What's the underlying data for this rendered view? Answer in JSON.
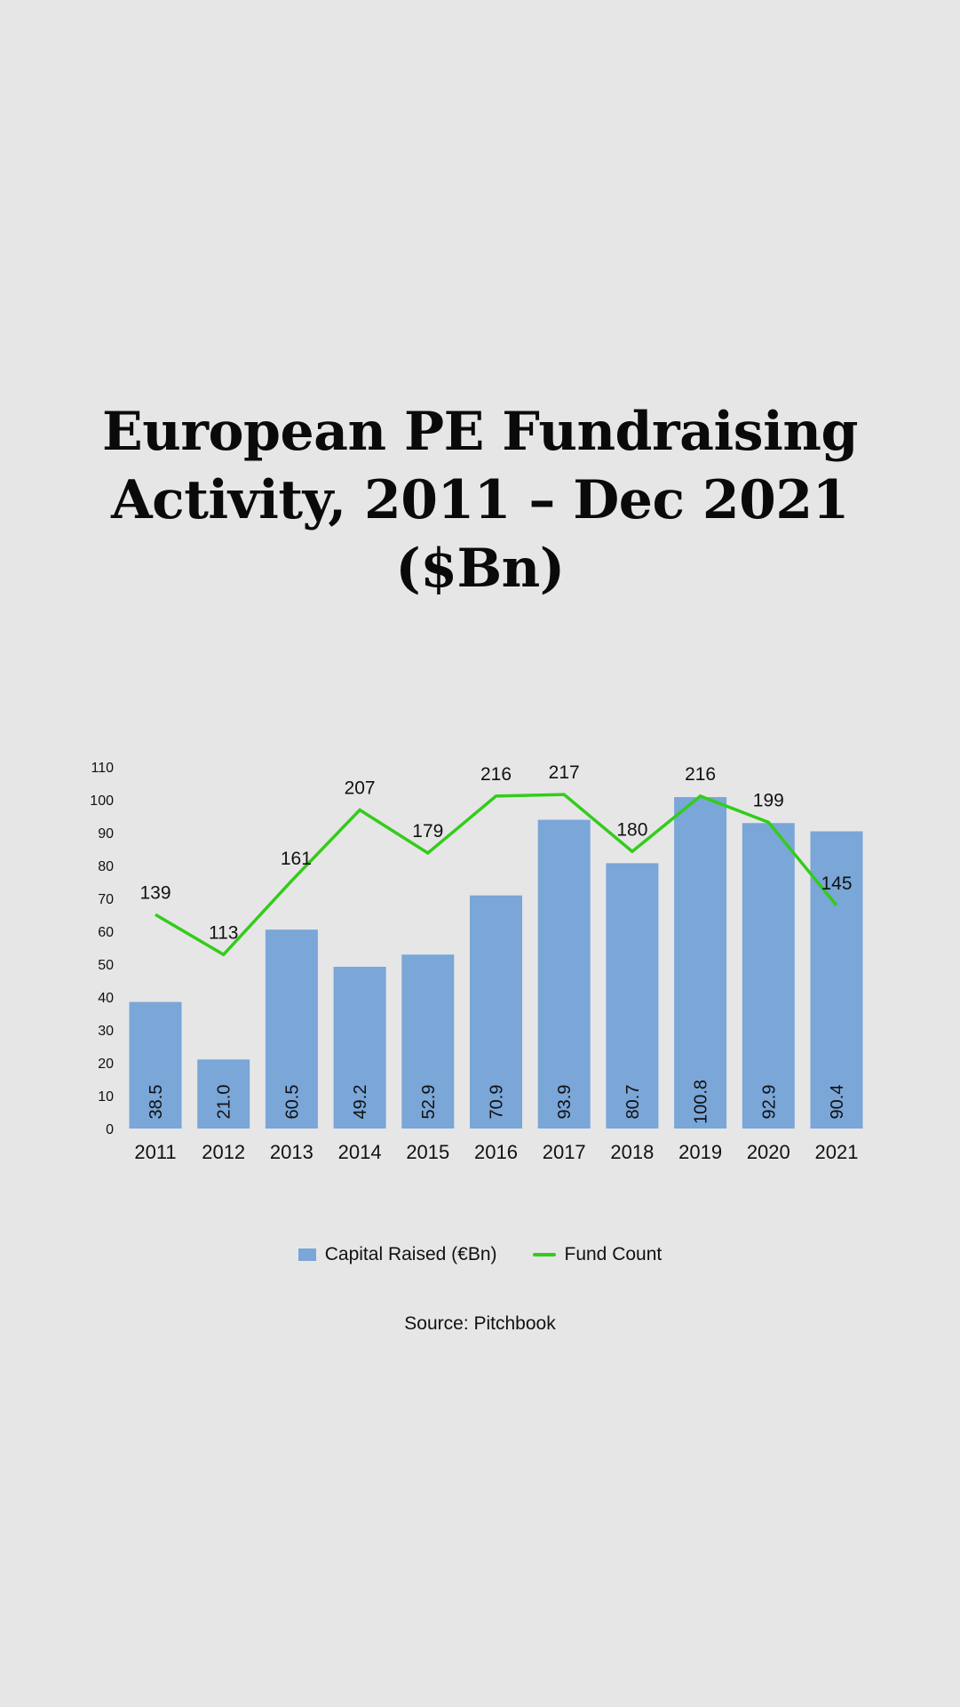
{
  "title": {
    "line1": "European PE Fundraising",
    "line2": "Activity, 2011 – Dec 2021",
    "line3": "($Bn)"
  },
  "chart_data": {
    "type": "bar",
    "title": "European PE Fundraising Activity, 2011 – Dec 2021 ($Bn)",
    "categories": [
      "2011",
      "2012",
      "2013",
      "2014",
      "2015",
      "2016",
      "2017",
      "2018",
      "2019",
      "2020",
      "2021"
    ],
    "series": [
      {
        "name": "Capital Raised (€Bn)",
        "type": "bar",
        "color": "#7aa6d8",
        "values": [
          38.5,
          21.0,
          60.5,
          49.2,
          52.9,
          70.9,
          93.9,
          80.7,
          100.8,
          92.9,
          90.4
        ],
        "labels": [
          "38.5",
          "21.0",
          "60.5",
          "49.2",
          "52.9",
          "70.9",
          "93.9",
          "80.7",
          "100.8",
          "92.9",
          "90.4"
        ]
      },
      {
        "name": "Fund Count",
        "type": "line",
        "color": "#33cc1a",
        "values": [
          139,
          113,
          161,
          207,
          179,
          216,
          217,
          180,
          216,
          199,
          145
        ]
      }
    ],
    "yticks": [
      "0",
      "10",
      "20",
      "30",
      "40",
      "50",
      "60",
      "70",
      "80",
      "90",
      "100",
      "110"
    ],
    "ylim": [
      0,
      110
    ],
    "fund_count_ylim": [
      0,
      235
    ],
    "xlabel": "",
    "ylabel": "",
    "grid": false,
    "legend": "bottom"
  },
  "legend": {
    "bar_label": "Capital Raised (€Bn)",
    "line_label": "Fund Count"
  },
  "source": "Source: Pitchbook"
}
